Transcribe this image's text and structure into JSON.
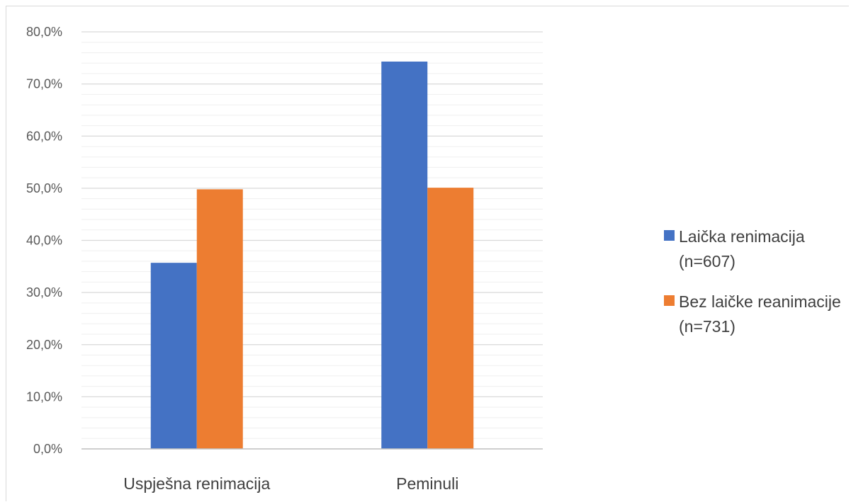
{
  "chart_data": {
    "type": "bar",
    "title": "",
    "xlabel": "",
    "ylabel": "",
    "categories": [
      "Uspješna renimacija",
      "Peminuli"
    ],
    "series": [
      {
        "name": "Laička renimacija (n=607)",
        "values": [
          35.7,
          74.3
        ],
        "color": "#4472c4"
      },
      {
        "name": "Bez laičke reanimacije (n=731)",
        "values": [
          49.8,
          50.1
        ],
        "color": "#ed7d31"
      }
    ],
    "ylim": [
      0,
      80
    ],
    "yticks": [
      "0,0%",
      "10,0%",
      "20,0%",
      "30,0%",
      "40,0%",
      "50,0%",
      "60,0%",
      "70,0%",
      "80,0%"
    ],
    "grid": true,
    "legend_position": "right"
  }
}
